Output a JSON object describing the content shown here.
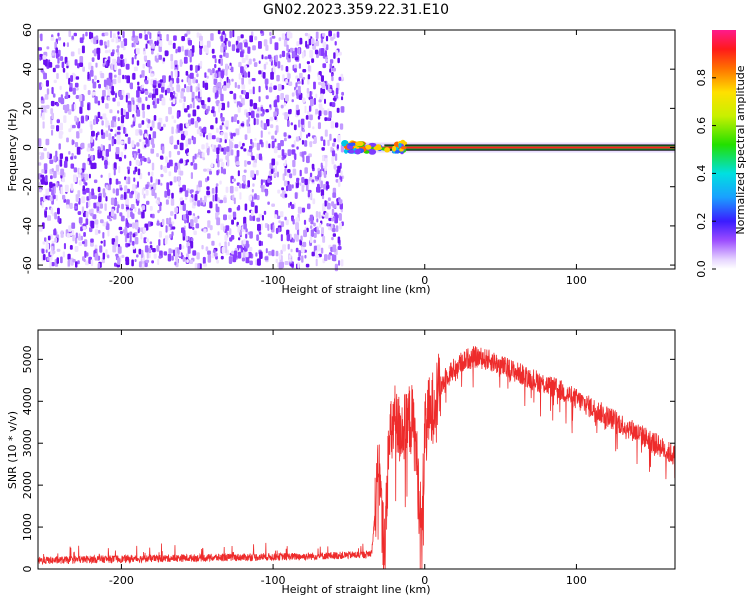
{
  "figure": {
    "title": "GN02.2023.359.22.31.E10"
  },
  "chart_data": [
    {
      "type": "heatmap",
      "xlabel": "Height of straight line (km)",
      "ylabel": "Frequency (Hz)",
      "xlim": [
        -255,
        165
      ],
      "ylim": [
        -62,
        60
      ],
      "x_ticks": [
        "-200",
        "-100",
        "0",
        "100"
      ],
      "x_tick_values": [
        -200,
        -100,
        0,
        100
      ],
      "y_ticks": [
        "60",
        "40",
        "20",
        "0",
        "-20",
        "-40",
        "-60"
      ],
      "y_tick_values": [
        60,
        40,
        20,
        0,
        -20,
        -40,
        -60
      ],
      "noise_region_x": [
        -255,
        -53
      ],
      "signal_line": {
        "x_start": -53,
        "x_end": 165,
        "frequency": 0,
        "amplitude": 1.0
      },
      "colorbar": {
        "label": "Normalized spectral amplitude",
        "range": [
          0,
          1
        ],
        "ticks": [
          "0.0",
          "0.2",
          "0.4",
          "0.6",
          "0.8"
        ],
        "tick_values": [
          0.0,
          0.2,
          0.4,
          0.6,
          0.8
        ]
      },
      "grid": false
    },
    {
      "type": "line",
      "xlabel": "Height of straight line (km)",
      "ylabel": "SNR (10 * v/v)",
      "xlim": [
        -255,
        165
      ],
      "ylim": [
        0,
        5700
      ],
      "x_ticks": [
        "-200",
        "-100",
        "0",
        "100"
      ],
      "x_tick_values": [
        -200,
        -100,
        0,
        100
      ],
      "y_ticks": [
        "0",
        "1000",
        "2000",
        "3000",
        "4000",
        "5000"
      ],
      "y_tick_values": [
        0,
        1000,
        2000,
        3000,
        4000,
        5000
      ],
      "color": "#ee2b2b",
      "series": [
        {
          "x": [
            -255,
            -240,
            -220,
            -200,
            -180,
            -160,
            -140,
            -120,
            -100,
            -80,
            -60,
            -40,
            -35,
            -32,
            -30,
            -28,
            -26,
            -24,
            -22,
            -20,
            -18,
            -15,
            -12,
            -10,
            -8,
            -6,
            -4,
            -2,
            0,
            2,
            4,
            6,
            8,
            10,
            15,
            20,
            25,
            30,
            35,
            40,
            45,
            50,
            60,
            70,
            80,
            90,
            100,
            110,
            120,
            130,
            140,
            150,
            160,
            165
          ],
          "y": [
            200,
            210,
            230,
            240,
            250,
            260,
            270,
            280,
            290,
            300,
            320,
            340,
            380,
            1700,
            2400,
            900,
            700,
            2800,
            3200,
            3600,
            3300,
            3400,
            3300,
            3600,
            3500,
            3000,
            1800,
            900,
            3100,
            3800,
            3600,
            4000,
            4200,
            4300,
            4650,
            4800,
            4950,
            5050,
            5050,
            5000,
            4950,
            4850,
            4700,
            4550,
            4400,
            4250,
            4050,
            3850,
            3650,
            3450,
            3250,
            3050,
            2800,
            2700
          ]
        }
      ],
      "grid": false
    }
  ]
}
